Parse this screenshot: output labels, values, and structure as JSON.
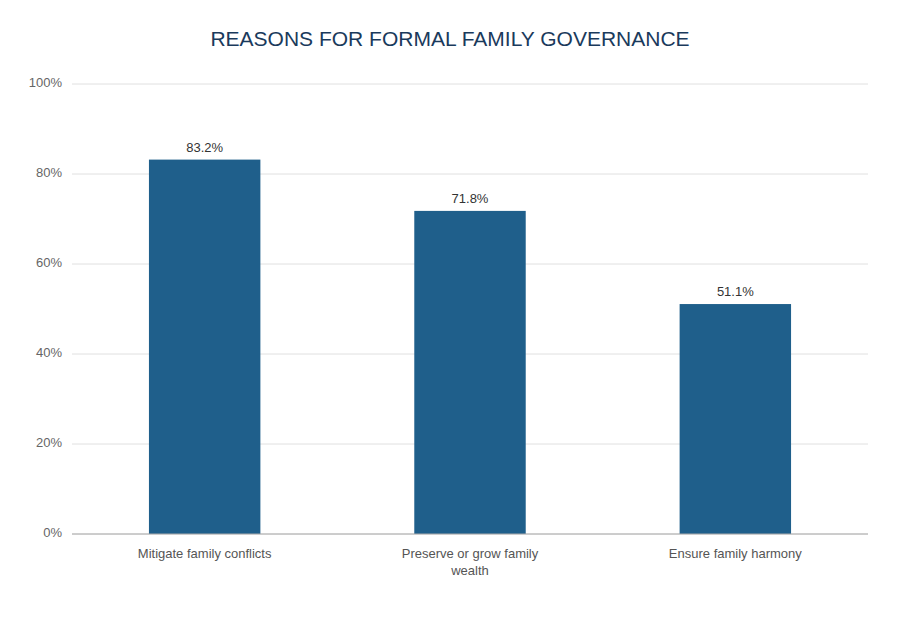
{
  "chart_data": {
    "type": "bar",
    "title": "REASONS FOR FORMAL FAMILY GOVERNANCE",
    "categories": [
      "Mitigate family conflicts",
      "Preserve or grow family\nwealth",
      "Ensure family harmony"
    ],
    "values": [
      83.2,
      71.8,
      51.1
    ],
    "value_labels": [
      "83.2%",
      "71.8%",
      "51.1%"
    ],
    "data_labels": true,
    "color": "#1F5F8B",
    "ylim": [
      0,
      100
    ],
    "yticks": [
      {
        "value": 0,
        "label": "0%"
      },
      {
        "value": 20,
        "label": "20%"
      },
      {
        "value": 40,
        "label": "40%"
      },
      {
        "value": 60,
        "label": "60%"
      },
      {
        "value": 80,
        "label": "80%"
      },
      {
        "value": 100,
        "label": "100%"
      }
    ],
    "grid": true
  }
}
